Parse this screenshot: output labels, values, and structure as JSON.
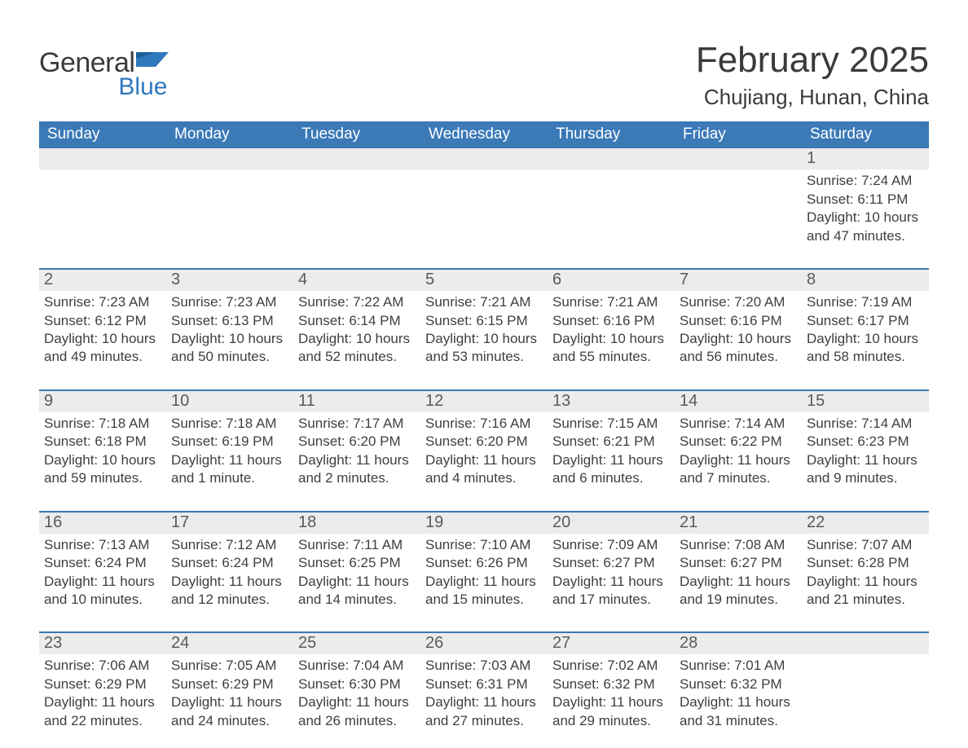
{
  "brand": {
    "word1": "General",
    "word2": "Blue"
  },
  "title": "February 2025",
  "location": "Chujiang, Hunan, China",
  "colors": {
    "header_bg": "#3b79b7",
    "header_text": "#ffffff",
    "row_rule": "#3b79b7",
    "daynum_bg": "#ececec",
    "body_text": "#3a3a3a",
    "logo_blue": "#2f78bd"
  },
  "dow": [
    "Sunday",
    "Monday",
    "Tuesday",
    "Wednesday",
    "Thursday",
    "Friday",
    "Saturday"
  ],
  "labels": {
    "sunrise": "Sunrise:",
    "sunset": "Sunset:",
    "daylight": "Daylight:"
  },
  "weeks": [
    [
      null,
      null,
      null,
      null,
      null,
      null,
      {
        "n": "1",
        "sunrise": "7:24 AM",
        "sunset": "6:11 PM",
        "daylight": "10 hours and 47 minutes."
      }
    ],
    [
      {
        "n": "2",
        "sunrise": "7:23 AM",
        "sunset": "6:12 PM",
        "daylight": "10 hours and 49 minutes."
      },
      {
        "n": "3",
        "sunrise": "7:23 AM",
        "sunset": "6:13 PM",
        "daylight": "10 hours and 50 minutes."
      },
      {
        "n": "4",
        "sunrise": "7:22 AM",
        "sunset": "6:14 PM",
        "daylight": "10 hours and 52 minutes."
      },
      {
        "n": "5",
        "sunrise": "7:21 AM",
        "sunset": "6:15 PM",
        "daylight": "10 hours and 53 minutes."
      },
      {
        "n": "6",
        "sunrise": "7:21 AM",
        "sunset": "6:16 PM",
        "daylight": "10 hours and 55 minutes."
      },
      {
        "n": "7",
        "sunrise": "7:20 AM",
        "sunset": "6:16 PM",
        "daylight": "10 hours and 56 minutes."
      },
      {
        "n": "8",
        "sunrise": "7:19 AM",
        "sunset": "6:17 PM",
        "daylight": "10 hours and 58 minutes."
      }
    ],
    [
      {
        "n": "9",
        "sunrise": "7:18 AM",
        "sunset": "6:18 PM",
        "daylight": "10 hours and 59 minutes."
      },
      {
        "n": "10",
        "sunrise": "7:18 AM",
        "sunset": "6:19 PM",
        "daylight": "11 hours and 1 minute."
      },
      {
        "n": "11",
        "sunrise": "7:17 AM",
        "sunset": "6:20 PM",
        "daylight": "11 hours and 2 minutes."
      },
      {
        "n": "12",
        "sunrise": "7:16 AM",
        "sunset": "6:20 PM",
        "daylight": "11 hours and 4 minutes."
      },
      {
        "n": "13",
        "sunrise": "7:15 AM",
        "sunset": "6:21 PM",
        "daylight": "11 hours and 6 minutes."
      },
      {
        "n": "14",
        "sunrise": "7:14 AM",
        "sunset": "6:22 PM",
        "daylight": "11 hours and 7 minutes."
      },
      {
        "n": "15",
        "sunrise": "7:14 AM",
        "sunset": "6:23 PM",
        "daylight": "11 hours and 9 minutes."
      }
    ],
    [
      {
        "n": "16",
        "sunrise": "7:13 AM",
        "sunset": "6:24 PM",
        "daylight": "11 hours and 10 minutes."
      },
      {
        "n": "17",
        "sunrise": "7:12 AM",
        "sunset": "6:24 PM",
        "daylight": "11 hours and 12 minutes."
      },
      {
        "n": "18",
        "sunrise": "7:11 AM",
        "sunset": "6:25 PM",
        "daylight": "11 hours and 14 minutes."
      },
      {
        "n": "19",
        "sunrise": "7:10 AM",
        "sunset": "6:26 PM",
        "daylight": "11 hours and 15 minutes."
      },
      {
        "n": "20",
        "sunrise": "7:09 AM",
        "sunset": "6:27 PM",
        "daylight": "11 hours and 17 minutes."
      },
      {
        "n": "21",
        "sunrise": "7:08 AM",
        "sunset": "6:27 PM",
        "daylight": "11 hours and 19 minutes."
      },
      {
        "n": "22",
        "sunrise": "7:07 AM",
        "sunset": "6:28 PM",
        "daylight": "11 hours and 21 minutes."
      }
    ],
    [
      {
        "n": "23",
        "sunrise": "7:06 AM",
        "sunset": "6:29 PM",
        "daylight": "11 hours and 22 minutes."
      },
      {
        "n": "24",
        "sunrise": "7:05 AM",
        "sunset": "6:29 PM",
        "daylight": "11 hours and 24 minutes."
      },
      {
        "n": "25",
        "sunrise": "7:04 AM",
        "sunset": "6:30 PM",
        "daylight": "11 hours and 26 minutes."
      },
      {
        "n": "26",
        "sunrise": "7:03 AM",
        "sunset": "6:31 PM",
        "daylight": "11 hours and 27 minutes."
      },
      {
        "n": "27",
        "sunrise": "7:02 AM",
        "sunset": "6:32 PM",
        "daylight": "11 hours and 29 minutes."
      },
      {
        "n": "28",
        "sunrise": "7:01 AM",
        "sunset": "6:32 PM",
        "daylight": "11 hours and 31 minutes."
      },
      null
    ]
  ]
}
